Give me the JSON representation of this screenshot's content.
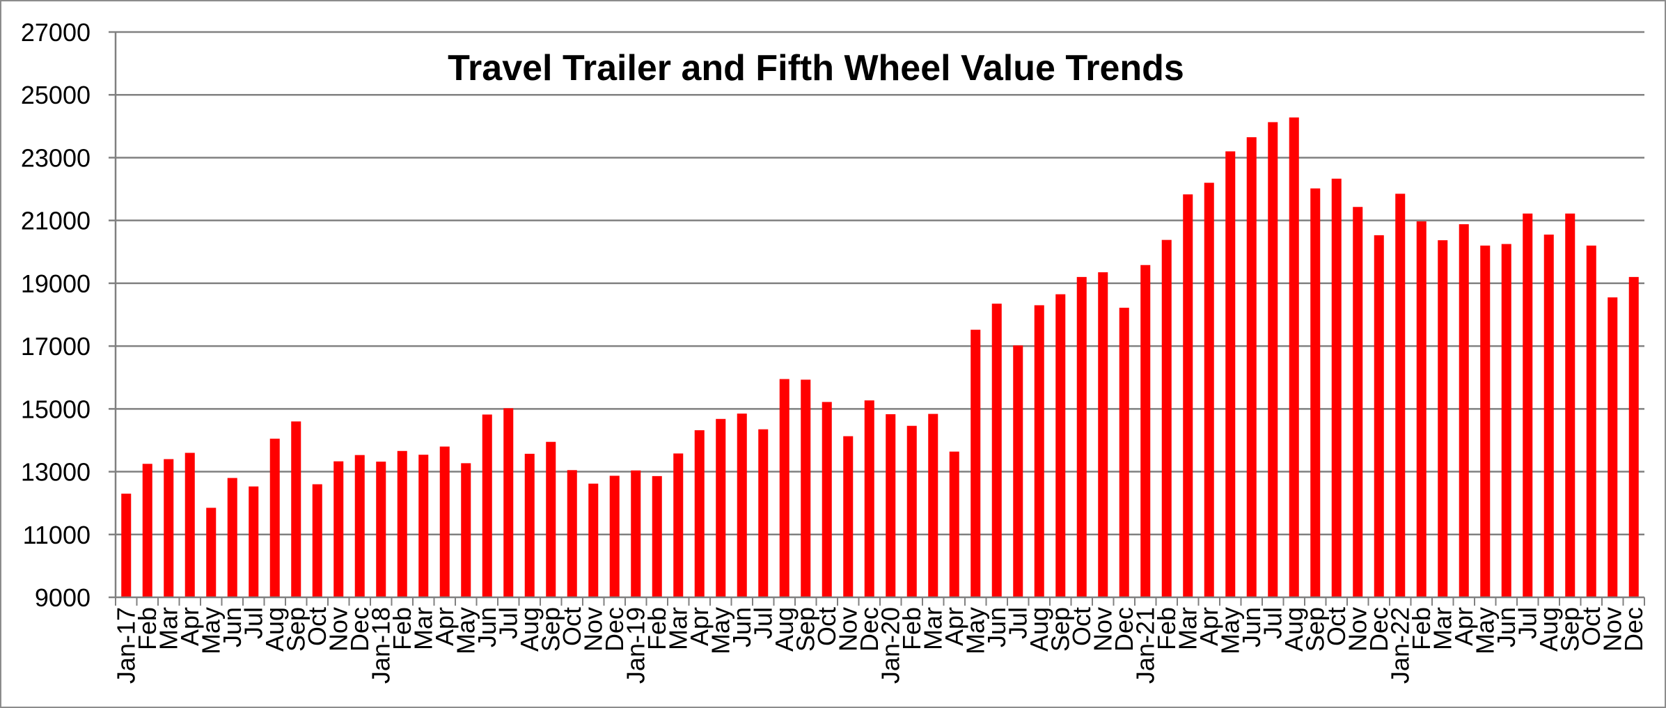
{
  "chart_data": {
    "type": "bar",
    "title": "Travel Trailer and Fifth Wheel Value Trends",
    "xlabel": "",
    "ylabel": "",
    "ylim": [
      9000,
      27000
    ],
    "yticks": [
      9000,
      11000,
      13000,
      15000,
      17000,
      19000,
      21000,
      23000,
      25000,
      27000
    ],
    "grid": true,
    "legend": "none",
    "bar_color": "#ff0000",
    "grid_color": "#808080",
    "categories": [
      "Jan-17",
      "Feb",
      "Mar",
      "Apr",
      "May",
      "Jun",
      "Jul",
      "Aug",
      "Sep",
      "Oct",
      "Nov",
      "Dec",
      "Jan-18",
      "Feb",
      "Mar",
      "Apr",
      "May",
      "Jun",
      "Jul",
      "Aug",
      "Sep",
      "Oct",
      "Nov",
      "Dec",
      "Jan-19",
      "Feb",
      "Mar",
      "Apr",
      "May",
      "Jun",
      "Jul",
      "Aug",
      "Sep",
      "Oct",
      "Nov",
      "Dec",
      "Jan-20",
      "Feb",
      "Mar",
      "Apr",
      "May",
      "Jun",
      "Jul",
      "Aug",
      "Sep",
      "Oct",
      "Nov",
      "Dec",
      "Jan-21",
      "Feb",
      "Mar",
      "Apr",
      "May",
      "Jun",
      "Jul",
      "Aug",
      "Sep",
      "Oct",
      "Nov",
      "Dec",
      "Jan-22",
      "Feb",
      "Mar",
      "Apr",
      "May",
      "Jun",
      "Jul",
      "Aug",
      "Sep",
      "Oct",
      "Nov",
      "Dec"
    ],
    "values": [
      12300,
      13250,
      13400,
      13600,
      11850,
      12800,
      12530,
      14050,
      14600,
      12600,
      13330,
      13530,
      13320,
      13660,
      13540,
      13800,
      13270,
      14820,
      15020,
      13570,
      13950,
      13050,
      12620,
      12870,
      13040,
      12860,
      13580,
      14320,
      14680,
      14850,
      14350,
      15950,
      15930,
      15220,
      14130,
      15270,
      14830,
      14460,
      14840,
      13640,
      17520,
      18350,
      17020,
      18300,
      18650,
      19200,
      19350,
      18220,
      19580,
      20380,
      21830,
      22200,
      23200,
      23650,
      24130,
      24280,
      22020,
      22330,
      21430,
      20530,
      21850,
      20970,
      20370,
      20880,
      20200,
      20250,
      21220,
      20550,
      21220,
      20200,
      18550,
      19200
    ]
  }
}
